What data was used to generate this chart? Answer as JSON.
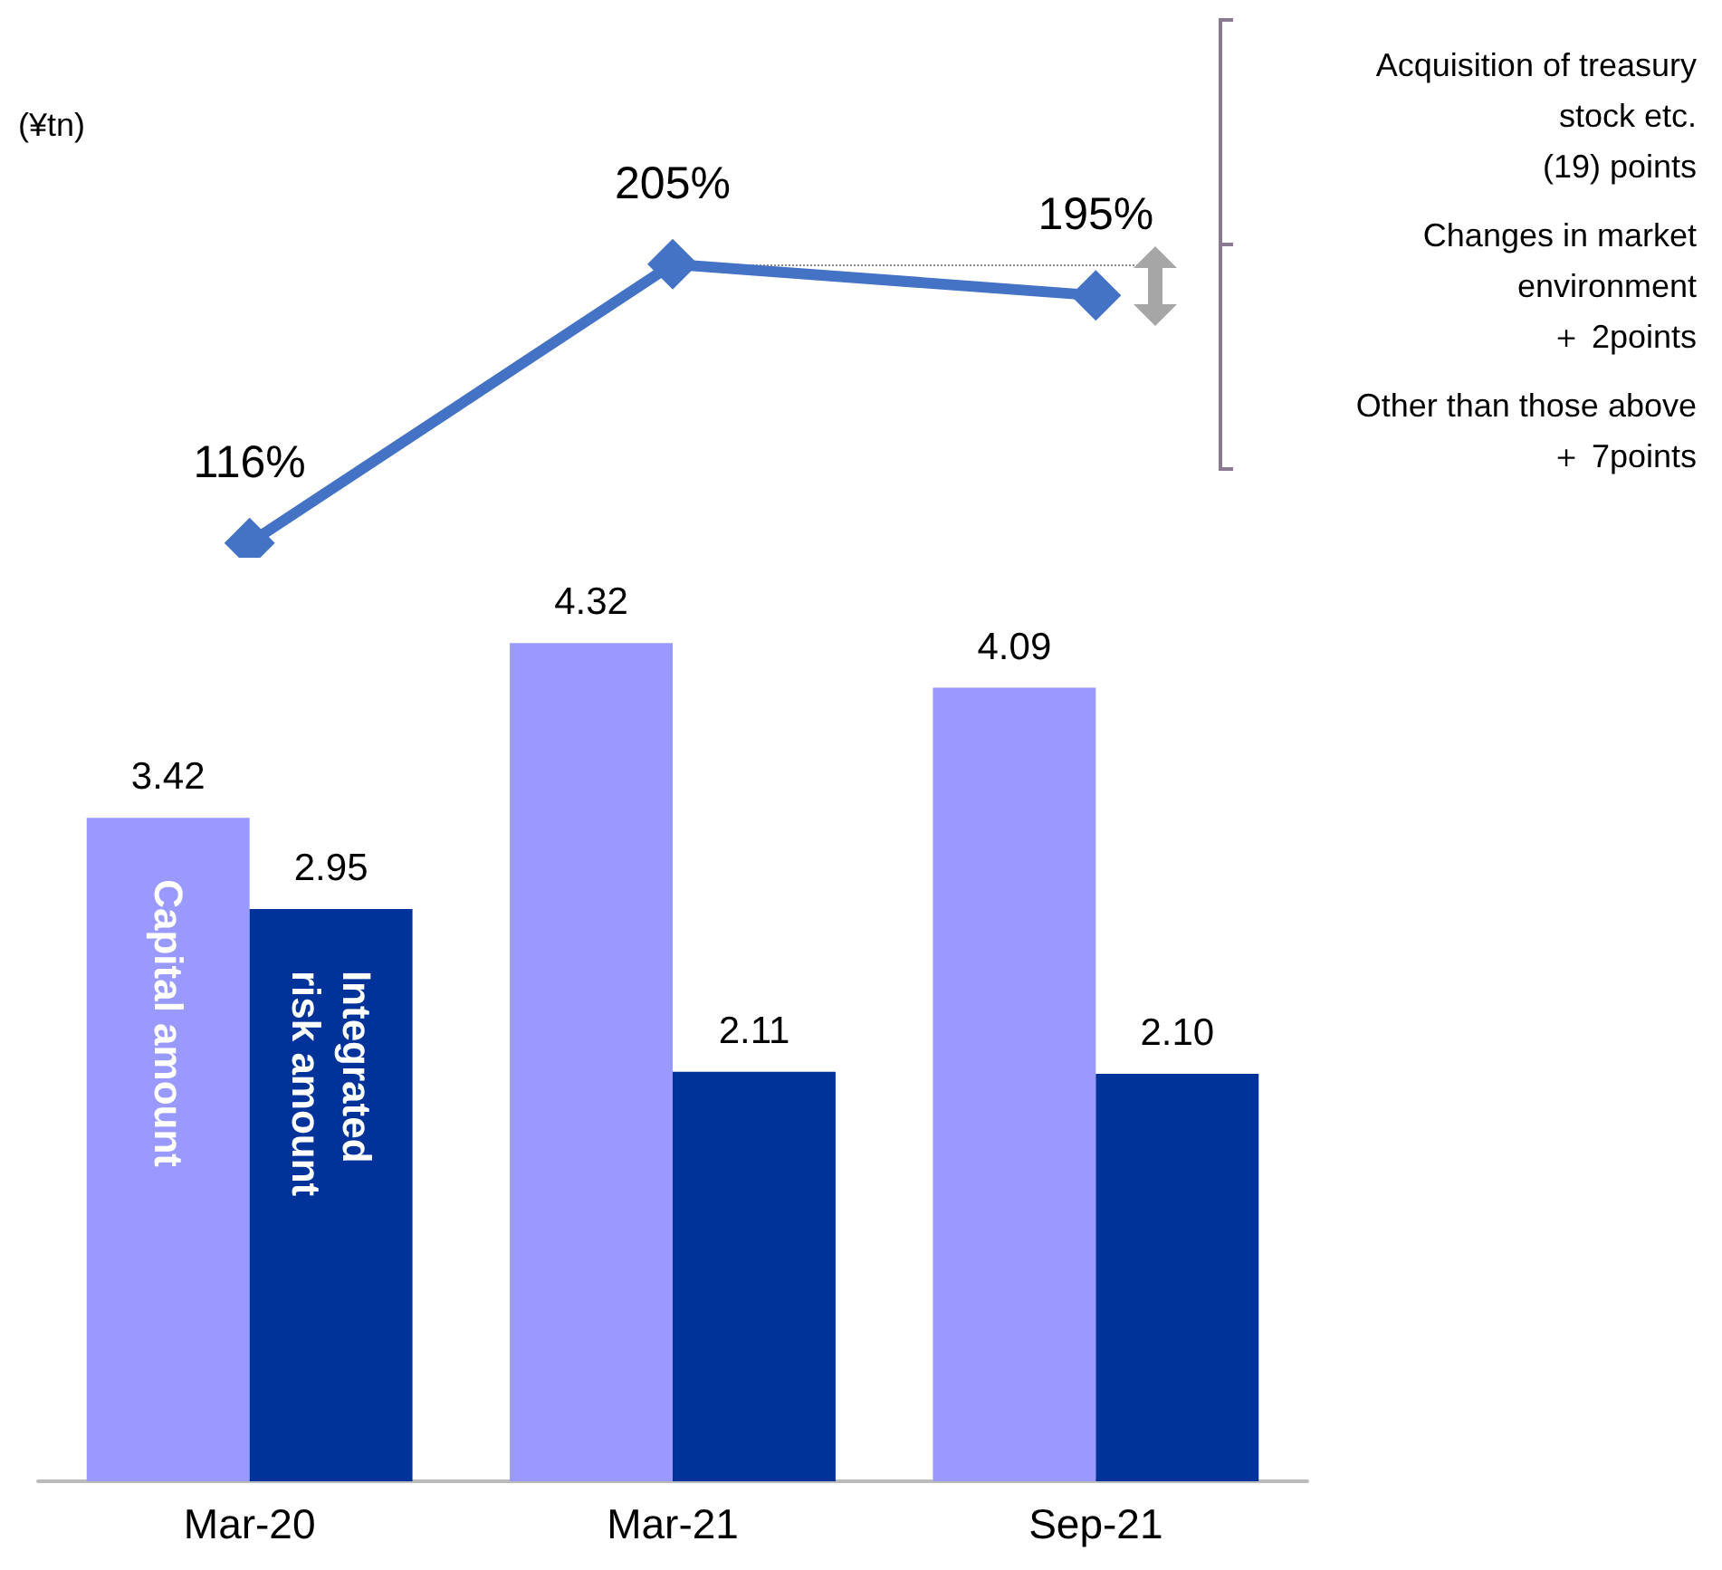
{
  "chart_data": [
    {
      "type": "line",
      "categories": [
        null,
        null,
        null
      ],
      "tick_labels": false,
      "series": [
        {
          "color": "#4472c4",
          "values": [
            116,
            205,
            195
          ],
          "value_labels": [
            "116%",
            "205%",
            "195%"
          ]
        }
      ],
      "ref_lines": [
        {
          "axis": "y",
          "value": 205,
          "label": null,
          "color": "#888888",
          "line_style": "dotted"
        }
      ],
      "annotations": [
        "Acquisition of treasury\nstock etc.\n(19) points",
        "Changes in market\nenvironment\n＋ 2points",
        "Other than those above\n＋ 7points"
      ],
      "marker": "diamond",
      "grid": false
    },
    {
      "type": "bar",
      "categories": [
        "Mar-20",
        "Mar-21",
        "Sep-21"
      ],
      "series": [
        {
          "name": "Capital amount",
          "color": "#9999ff",
          "values": [
            3.42,
            4.32,
            4.09
          ]
        },
        {
          "name": "Integrated risk amount",
          "color": "#003399",
          "values": [
            2.95,
            2.11,
            2.1
          ],
          "value_labels": [
            "2.95",
            "2.11",
            "2.10"
          ]
        }
      ],
      "annotations": [
        "(¥tn)"
      ],
      "data_labels": true,
      "grid": false
    }
  ]
}
